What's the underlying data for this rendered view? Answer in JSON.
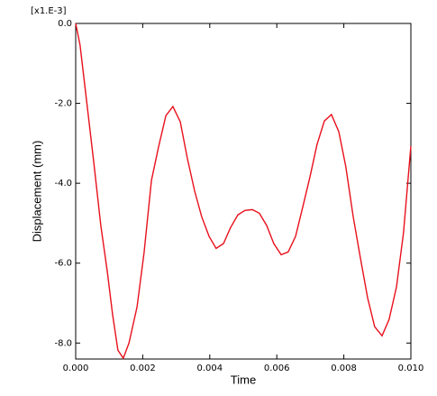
{
  "chart_data": {
    "type": "line",
    "scale_label": "[x1.E-3]",
    "x_label": "Time",
    "y_label": "Displacement (mm)",
    "xlim": [
      0,
      0.01
    ],
    "ylim": [
      -8.4,
      0
    ],
    "xticks": [
      {
        "value": 0,
        "label": "0.000"
      },
      {
        "value": 0.002,
        "label": "0.002"
      },
      {
        "value": 0.004,
        "label": "0.004"
      },
      {
        "value": 0.006,
        "label": "0.006"
      },
      {
        "value": 0.008,
        "label": "0.008"
      },
      {
        "value": 0.01,
        "label": "0.010"
      }
    ],
    "yticks": [
      {
        "value": 0,
        "label": "0.0"
      },
      {
        "value": -2,
        "label": "-2.0"
      },
      {
        "value": -4,
        "label": "-4.0"
      },
      {
        "value": -6,
        "label": "-6.0"
      },
      {
        "value": -8,
        "label": "-8.0"
      }
    ],
    "x": [
      0,
      0.00013,
      0.00032,
      0.00054,
      0.00075,
      0.00094,
      0.0011,
      0.00126,
      0.00142,
      0.00159,
      0.00183,
      0.00204,
      0.00226,
      0.00247,
      0.00269,
      0.0029,
      0.00312,
      0.00333,
      0.00355,
      0.00376,
      0.00398,
      0.00419,
      0.00441,
      0.00462,
      0.00484,
      0.00505,
      0.00527,
      0.00548,
      0.0057,
      0.00591,
      0.00613,
      0.00634,
      0.00656,
      0.00677,
      0.00699,
      0.0072,
      0.00742,
      0.00763,
      0.00785,
      0.00806,
      0.00828,
      0.00849,
      0.00871,
      0.00892,
      0.00914,
      0.00935,
      0.00957,
      0.00978,
      0.01
    ],
    "series": [
      {
        "color": "#e8101c",
        "values": [
          0,
          -0.54,
          -1.9,
          -3.48,
          -5.06,
          -6.19,
          -7.28,
          -8.18,
          -8.38,
          -8.0,
          -7.1,
          -5.74,
          -3.93,
          -3.1,
          -2.31,
          -2.08,
          -2.46,
          -3.37,
          -4.2,
          -4.84,
          -5.33,
          -5.63,
          -5.51,
          -5.11,
          -4.79,
          -4.68,
          -4.66,
          -4.75,
          -5.06,
          -5.51,
          -5.79,
          -5.72,
          -5.33,
          -4.61,
          -3.84,
          -3.03,
          -2.44,
          -2.28,
          -2.71,
          -3.59,
          -4.84,
          -5.85,
          -6.87,
          -7.59,
          -7.82,
          -7.41,
          -6.6,
          -5.24,
          -3.07
        ]
      }
    ]
  }
}
